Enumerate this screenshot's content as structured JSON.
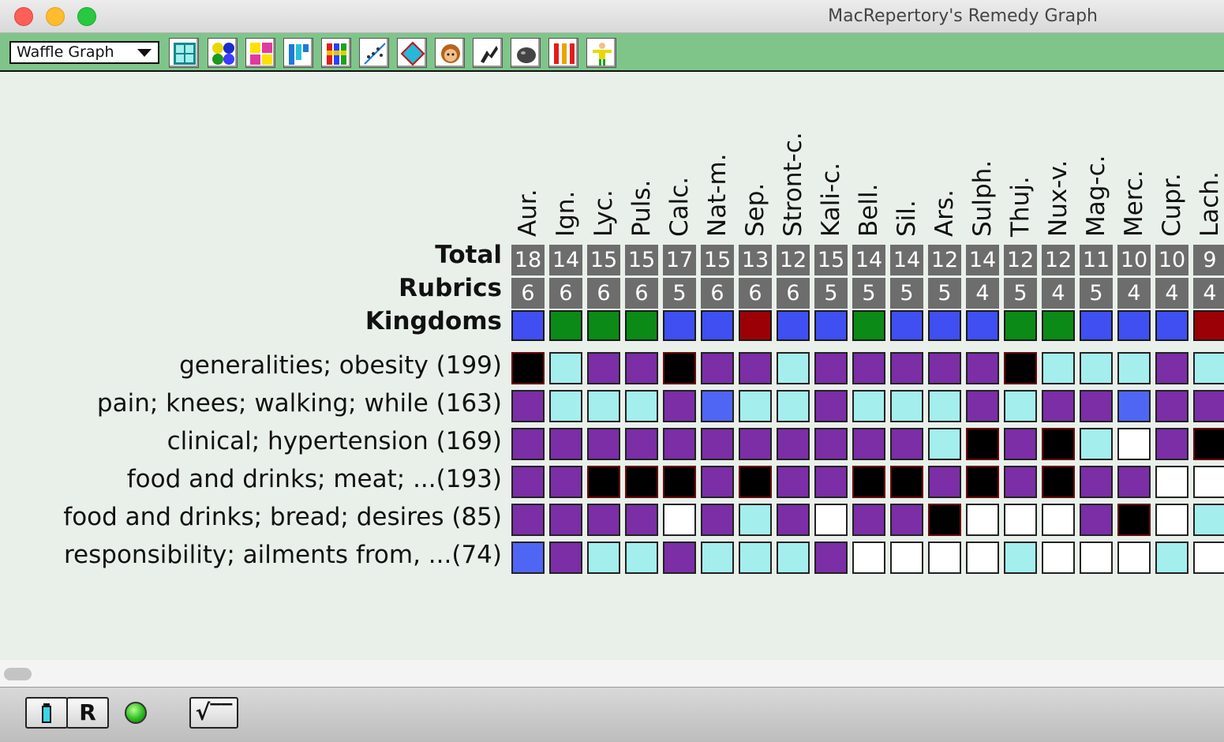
{
  "window": {
    "title": "MacRepertory's Remedy Graph"
  },
  "toolbar": {
    "graph_type": "Waffle Graph",
    "buttons": [
      {
        "name": "waffle-graph-icon"
      },
      {
        "name": "circles-graph-icon"
      },
      {
        "name": "numbers-graph-icon"
      },
      {
        "name": "bar-graph-icon"
      },
      {
        "name": "color-bar-graph-icon"
      },
      {
        "name": "scatter-graph-icon"
      },
      {
        "name": "diamond-graph-icon"
      },
      {
        "name": "face-icon"
      },
      {
        "name": "animal-icon"
      },
      {
        "name": "mineral-icon"
      },
      {
        "name": "columns-icon"
      },
      {
        "name": "person-icon"
      }
    ]
  },
  "graph": {
    "headers": {
      "total": "Total",
      "rubrics": "Rubrics",
      "kingdoms": "Kingdoms"
    },
    "kingdom_colors": {
      "mineral": "#3f4ff2",
      "plant": "#0b8a17",
      "animal": "#9c0007"
    },
    "level_colors": {
      "0": "#ffffff",
      "1": "#a4eeee",
      "2": "#7b2ea6",
      "3": "#4f66f4",
      "4": "#000000"
    },
    "remedies": [
      {
        "name": "Aur.",
        "total": "18",
        "rubrics": "6",
        "kingdom": "mineral"
      },
      {
        "name": "Ign.",
        "total": "14",
        "rubrics": "6",
        "kingdom": "plant"
      },
      {
        "name": "Lyc.",
        "total": "15",
        "rubrics": "6",
        "kingdom": "plant"
      },
      {
        "name": "Puls.",
        "total": "15",
        "rubrics": "6",
        "kingdom": "plant"
      },
      {
        "name": "Calc.",
        "total": "17",
        "rubrics": "5",
        "kingdom": "mineral"
      },
      {
        "name": "Nat-m.",
        "total": "15",
        "rubrics": "6",
        "kingdom": "mineral"
      },
      {
        "name": "Sep.",
        "total": "13",
        "rubrics": "6",
        "kingdom": "animal"
      },
      {
        "name": "Stront-c.",
        "total": "12",
        "rubrics": "6",
        "kingdom": "mineral"
      },
      {
        "name": "Kali-c.",
        "total": "15",
        "rubrics": "5",
        "kingdom": "mineral"
      },
      {
        "name": "Bell.",
        "total": "14",
        "rubrics": "5",
        "kingdom": "plant"
      },
      {
        "name": "Sil.",
        "total": "14",
        "rubrics": "5",
        "kingdom": "mineral"
      },
      {
        "name": "Ars.",
        "total": "12",
        "rubrics": "5",
        "kingdom": "mineral"
      },
      {
        "name": "Sulph.",
        "total": "14",
        "rubrics": "4",
        "kingdom": "mineral"
      },
      {
        "name": "Thuj.",
        "total": "12",
        "rubrics": "5",
        "kingdom": "plant"
      },
      {
        "name": "Nux-v.",
        "total": "12",
        "rubrics": "4",
        "kingdom": "plant"
      },
      {
        "name": "Mag-c.",
        "total": "11",
        "rubrics": "5",
        "kingdom": "mineral"
      },
      {
        "name": "Merc.",
        "total": "10",
        "rubrics": "4",
        "kingdom": "mineral"
      },
      {
        "name": "Cupr.",
        "total": "10",
        "rubrics": "4",
        "kingdom": "mineral"
      },
      {
        "name": "Lach.",
        "total": "9",
        "rubrics": "4",
        "kingdom": "animal"
      }
    ],
    "rubrics": [
      {
        "label": "generalities; obesity (199)",
        "levels": [
          4,
          1,
          2,
          2,
          4,
          2,
          2,
          1,
          2,
          2,
          2,
          2,
          2,
          4,
          1,
          1,
          1,
          2,
          1
        ]
      },
      {
        "label": "pain; knees; walking; while (163)",
        "levels": [
          2,
          1,
          1,
          1,
          2,
          3,
          1,
          1,
          2,
          1,
          1,
          1,
          2,
          1,
          2,
          2,
          3,
          2,
          2
        ]
      },
      {
        "label": "clinical; hypertension (169)",
        "levels": [
          2,
          2,
          2,
          2,
          2,
          2,
          2,
          2,
          2,
          2,
          2,
          1,
          4,
          2,
          4,
          1,
          0,
          2,
          4
        ]
      },
      {
        "label": "food and drinks; meat; ...(193)",
        "levels": [
          2,
          2,
          4,
          4,
          4,
          2,
          4,
          2,
          2,
          4,
          4,
          2,
          4,
          2,
          4,
          2,
          2,
          0,
          0
        ]
      },
      {
        "label": "food and drinks; bread; desires (85)",
        "levels": [
          2,
          2,
          2,
          2,
          0,
          2,
          1,
          2,
          0,
          2,
          2,
          4,
          0,
          0,
          0,
          2,
          4,
          0,
          1
        ]
      },
      {
        "label": "responsibility; ailments from, ...(74)",
        "levels": [
          3,
          2,
          1,
          1,
          2,
          1,
          1,
          1,
          2,
          0,
          0,
          0,
          0,
          1,
          0,
          0,
          0,
          1,
          0
        ]
      }
    ]
  },
  "statusbar": {
    "buttons": [
      {
        "name": "remedy-info-button",
        "label": "i"
      },
      {
        "name": "repertory-button",
        "label": "R"
      },
      {
        "name": "formula-button",
        "label": "√‾‾"
      }
    ]
  }
}
